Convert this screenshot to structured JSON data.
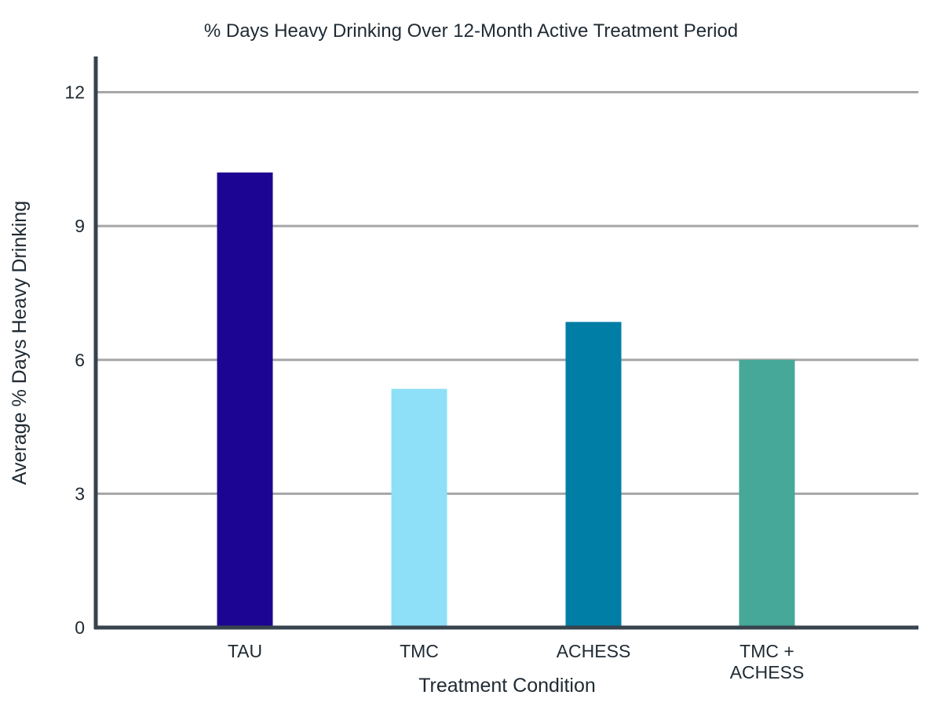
{
  "chart_data": {
    "type": "bar",
    "title": "% Days Heavy Drinking Over 12-Month Active Treatment Period",
    "xlabel": "Treatment Condition",
    "ylabel": "Average % Days Heavy Drinking",
    "categories": [
      "TAU",
      "TMC",
      "TMC + ACHESS",
      "ACHESS"
    ],
    "category_order": [
      "TAU",
      "TMC",
      "ACHESS",
      "TMC + ACHESS"
    ],
    "category_lines": [
      [
        "TAU"
      ],
      [
        "TMC"
      ],
      [
        "ACHESS"
      ],
      [
        "TMC +",
        "ACHESS"
      ]
    ],
    "values": [
      10.2,
      5.35,
      6.85,
      6.0
    ],
    "bar_colors": [
      "#1b0592",
      "#8de0f8",
      "#007ea5",
      "#45a898"
    ],
    "ylim": [
      0,
      12.8
    ],
    "yticks": [
      0,
      3,
      6,
      9,
      12
    ],
    "grid": true,
    "legend": "none"
  }
}
